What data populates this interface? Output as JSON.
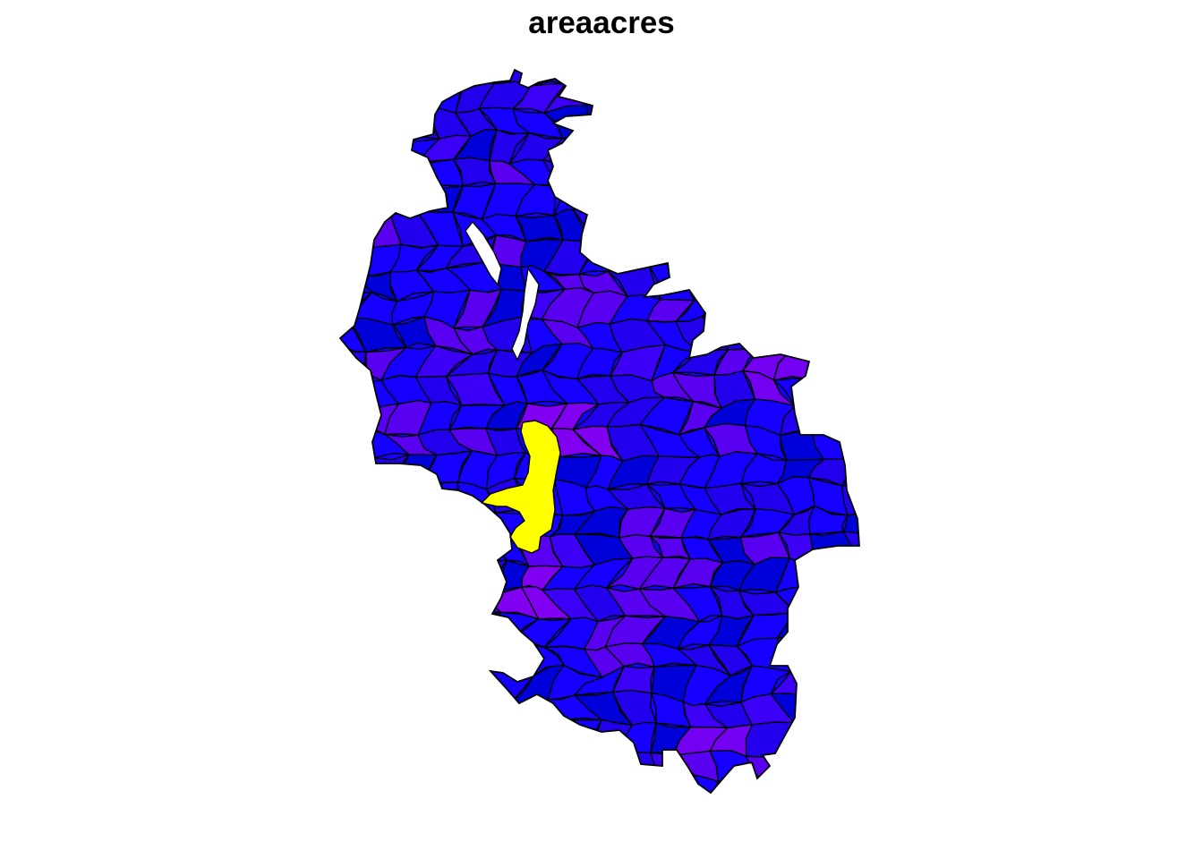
{
  "map": {
    "title": "areaacres",
    "variable": "areaacres",
    "palette": {
      "dominant_low": "#1500ff",
      "low": "#2200ee",
      "low_dark": "#0000d8",
      "mid_low": "#3b00f5",
      "mid": "#5a00f0",
      "mid_high": "#7300f0",
      "high": "#8200f2",
      "max": "#ffff00",
      "border": "#000000",
      "background": "#ffffff"
    }
  }
}
